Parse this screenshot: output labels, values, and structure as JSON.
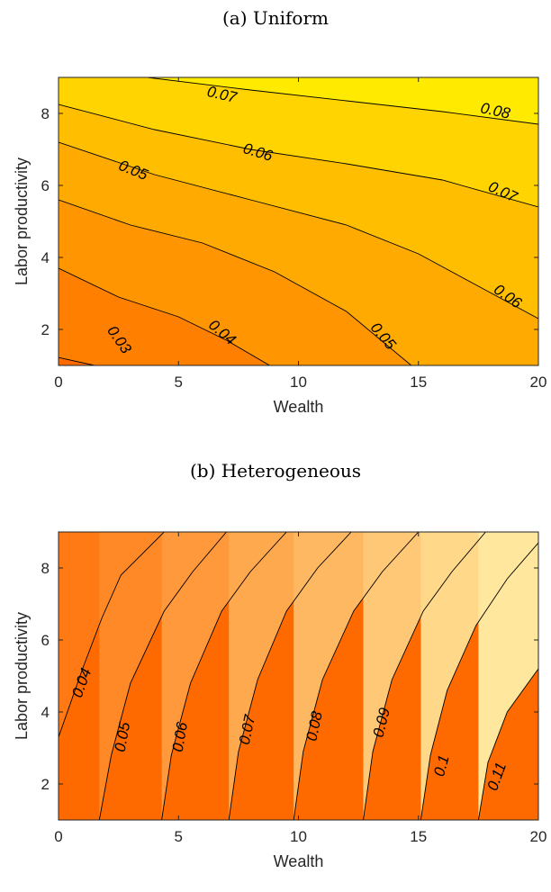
{
  "chart_data": [
    {
      "type": "contour",
      "title": "(a) Uniform",
      "xlabel": "Wealth",
      "ylabel": "Labor productivity",
      "xlim": [
        0,
        20
      ],
      "ylim": [
        1,
        9
      ],
      "xticks": [
        0,
        5,
        10,
        15,
        20
      ],
      "yticks": [
        2,
        4,
        6,
        8
      ],
      "colormap": [
        "#ff6a00",
        "#ffff00"
      ],
      "zrange": [
        0.02,
        0.09
      ],
      "levels": [
        {
          "value": 0.03,
          "label": "0.03",
          "points": [
            [
              0,
              1.22
            ],
            [
              1.5,
              1.0
            ]
          ],
          "label_at": [
            2.5,
            1.7
          ],
          "label_angle": 55
        },
        {
          "value": 0.04,
          "label": "0.04",
          "points": [
            [
              0,
              3.7
            ],
            [
              2.5,
              2.9
            ],
            [
              5,
              2.35
            ],
            [
              7,
              1.7
            ],
            [
              8.8,
              1.0
            ]
          ],
          "label_at": [
            6.8,
            1.9
          ],
          "label_angle": 40
        },
        {
          "value": 0.05,
          "label": "0.05",
          "points": [
            [
              0,
              5.6
            ],
            [
              3,
              4.9
            ],
            [
              6,
              4.4
            ],
            [
              9,
              3.6
            ],
            [
              12,
              2.5
            ],
            [
              14.7,
              1.0
            ]
          ],
          "label_at": [
            13.5,
            1.8
          ],
          "label_angle": 50
        },
        {
          "value": 0.06,
          "label": "0.06",
          "points": [
            [
              0,
              7.2
            ],
            [
              4,
              6.3
            ],
            [
              8,
              5.6
            ],
            [
              12,
              4.9
            ],
            [
              15,
              4.1
            ],
            [
              17.5,
              3.2
            ],
            [
              20,
              2.3
            ]
          ],
          "label_at": [
            18.7,
            2.9
          ],
          "label_angle": 35
        },
        {
          "value": 0.07,
          "label": "0.07",
          "points": [
            [
              0,
              8.25
            ],
            [
              4,
              7.55
            ],
            [
              8,
              7.0
            ],
            [
              12,
              6.6
            ],
            [
              16,
              6.15
            ],
            [
              20,
              5.4
            ]
          ],
          "label_at": [
            18.5,
            5.8
          ],
          "label_angle": 25
        },
        {
          "value": 0.08,
          "label": "0.08",
          "points": [
            [
              3.7,
              9.0
            ],
            [
              8,
              8.65
            ],
            [
              12,
              8.35
            ],
            [
              16,
              8.05
            ],
            [
              20,
              7.7
            ]
          ],
          "label_at": [
            18.2,
            8.05
          ],
          "label_angle": 12
        },
        {
          "value": 0.07,
          "label": "0.07",
          "points": [],
          "label_at": [
            6.8,
            8.5
          ],
          "label_angle": 13
        },
        {
          "value": 0.06,
          "label": "0.06",
          "points": [],
          "label_at": [
            8.3,
            6.9
          ],
          "label_angle": 17
        },
        {
          "value": 0.05,
          "label": "0.05",
          "points": [],
          "label_at": [
            3.1,
            6.4
          ],
          "label_angle": 22
        }
      ]
    },
    {
      "type": "contour",
      "title": "(b) Heterogeneous",
      "xlabel": "Wealth",
      "ylabel": "Labor productivity",
      "xlim": [
        0,
        20
      ],
      "ylim": [
        1,
        9
      ],
      "xticks": [
        0,
        5,
        10,
        15,
        20
      ],
      "yticks": [
        2,
        4,
        6,
        8
      ],
      "colormap": [
        "#ff6a00",
        "#ffffbb"
      ],
      "zrange": [
        0.03,
        0.125
      ],
      "levels": [
        {
          "value": 0.04,
          "label": "0.04",
          "points": [
            [
              0,
              3.3
            ],
            [
              1.0,
              5.2
            ],
            [
              1.8,
              6.6
            ],
            [
              2.6,
              7.8
            ],
            [
              4.4,
              9.0
            ]
          ],
          "label_at": [
            1.0,
            4.8
          ],
          "label_angle": -70
        },
        {
          "value": 0.05,
          "label": "0.05",
          "points": [
            [
              1.7,
              1.0
            ],
            [
              2.2,
              2.8
            ],
            [
              3.0,
              4.8
            ],
            [
              4.4,
              6.8
            ],
            [
              5.6,
              7.9
            ],
            [
              7.0,
              9.0
            ]
          ],
          "label_at": [
            2.7,
            3.3
          ],
          "label_angle": -80
        },
        {
          "value": 0.06,
          "label": "0.06",
          "points": [
            [
              4.3,
              1.0
            ],
            [
              4.7,
              2.8
            ],
            [
              5.5,
              4.8
            ],
            [
              6.8,
              6.8
            ],
            [
              8.0,
              7.9
            ],
            [
              9.5,
              9.0
            ]
          ],
          "label_at": [
            5.1,
            3.3
          ],
          "label_angle": -80
        },
        {
          "value": 0.07,
          "label": "0.07",
          "points": [
            [
              7.1,
              1.0
            ],
            [
              7.5,
              2.9
            ],
            [
              8.3,
              4.9
            ],
            [
              9.5,
              6.8
            ],
            [
              10.8,
              8.0
            ],
            [
              12.2,
              9.0
            ]
          ],
          "label_at": [
            7.9,
            3.5
          ],
          "label_angle": -78
        },
        {
          "value": 0.08,
          "label": "0.08",
          "points": [
            [
              9.8,
              1.0
            ],
            [
              10.2,
              2.9
            ],
            [
              11.0,
              4.9
            ],
            [
              12.3,
              6.8
            ],
            [
              13.5,
              7.9
            ],
            [
              15.0,
              9.0
            ]
          ],
          "label_at": [
            10.7,
            3.6
          ],
          "label_angle": -78
        },
        {
          "value": 0.09,
          "label": "0.09",
          "points": [
            [
              12.7,
              1.0
            ],
            [
              13.1,
              2.9
            ],
            [
              13.9,
              4.9
            ],
            [
              15.2,
              6.8
            ],
            [
              16.4,
              7.9
            ],
            [
              17.8,
              9.0
            ]
          ],
          "label_at": [
            13.5,
            3.7
          ],
          "label_angle": -76
        },
        {
          "value": 0.1,
          "label": "0.1",
          "points": [
            [
              15.1,
              1.0
            ],
            [
              15.5,
              2.8
            ],
            [
              16.2,
              4.6
            ],
            [
              17.4,
              6.4
            ],
            [
              18.7,
              7.7
            ],
            [
              20,
              8.7
            ]
          ],
          "label_at": [
            16.0,
            2.5
          ],
          "label_angle": -75
        },
        {
          "value": 0.11,
          "label": "0.11",
          "points": [
            [
              17.5,
              1.0
            ],
            [
              17.9,
              2.6
            ],
            [
              18.7,
              4.0
            ],
            [
              20,
              5.2
            ]
          ],
          "label_at": [
            18.3,
            2.2
          ],
          "label_angle": -70
        }
      ]
    }
  ]
}
